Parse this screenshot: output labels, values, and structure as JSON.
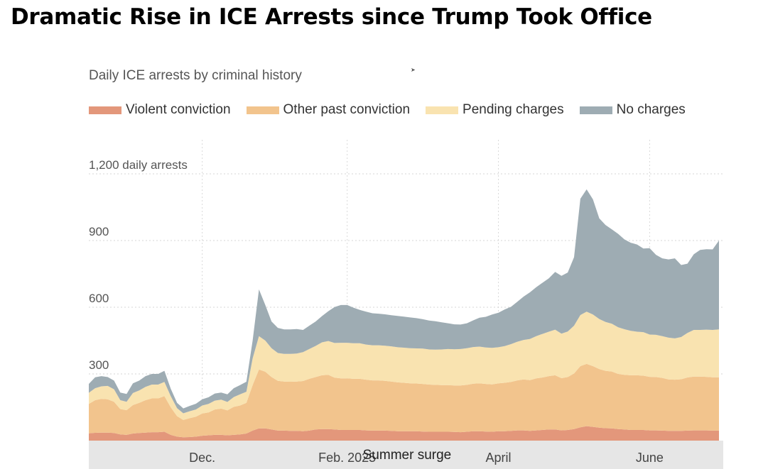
{
  "page": {
    "title": "Dramatic Rise in ICE Arrests since Trump Took Office"
  },
  "chart_data": {
    "type": "area",
    "stacked": true,
    "title": "Dramatic Rise in ICE Arrests since Trump Took Office",
    "subtitle": "Daily ICE arrests by criminal history",
    "ylabel": "",
    "xlabel": "",
    "ylim": [
      0,
      1200
    ],
    "y_ticks": [
      {
        "value": 1200,
        "label": "1,200 daily arrests"
      },
      {
        "value": 900,
        "label": "900"
      },
      {
        "value": 600,
        "label": "600"
      },
      {
        "value": 300,
        "label": "300"
      }
    ],
    "x_domain": [
      0,
      100
    ],
    "x_ticks": [
      {
        "x": 18,
        "label": "Dec."
      },
      {
        "x": 41,
        "label": "Feb. 2025"
      },
      {
        "x": 65,
        "label": "April"
      },
      {
        "x": 89,
        "label": "June"
      }
    ],
    "grid": true,
    "legend_position": "top-left",
    "annotation": {
      "text": "Summer surge",
      "x": 50.5
    },
    "x": [
      0,
      1,
      2,
      3,
      4,
      5,
      6,
      7,
      8,
      9,
      10,
      11,
      12,
      13,
      14,
      15,
      16,
      17,
      18,
      19,
      20,
      21,
      22,
      23,
      24,
      25,
      26,
      27,
      28,
      29,
      30,
      31,
      32,
      33,
      34,
      35,
      36,
      37,
      38,
      39,
      40,
      41,
      42,
      43,
      44,
      45,
      46,
      47,
      48,
      49,
      50,
      51,
      52,
      53,
      54,
      55,
      56,
      57,
      58,
      59,
      60,
      61,
      62,
      63,
      64,
      65,
      66,
      67,
      68,
      69,
      70,
      71,
      72,
      73,
      74,
      75,
      76,
      77,
      78,
      79,
      80,
      81,
      82,
      83,
      84,
      85,
      86,
      87,
      88,
      89,
      90,
      91,
      92,
      93,
      94,
      95,
      96,
      97,
      98,
      99,
      100
    ],
    "series": [
      {
        "name": "Violent conviction",
        "color": "#e3977b",
        "values": [
          33,
          35,
          36,
          36,
          34,
          28,
          26,
          32,
          34,
          36,
          38,
          38,
          40,
          26,
          18,
          15,
          16,
          18,
          22,
          24,
          26,
          26,
          24,
          26,
          28,
          32,
          45,
          55,
          55,
          50,
          45,
          45,
          44,
          44,
          42,
          45,
          50,
          52,
          52,
          50,
          48,
          48,
          48,
          48,
          46,
          45,
          45,
          45,
          44,
          42,
          42,
          42,
          42,
          41,
          40,
          40,
          40,
          40,
          39,
          38,
          40,
          42,
          42,
          41,
          40,
          42,
          42,
          44,
          46,
          46,
          44,
          46,
          48,
          50,
          50,
          46,
          48,
          52,
          60,
          65,
          62,
          58,
          56,
          55,
          52,
          50,
          48,
          48,
          48,
          46,
          46,
          45,
          44,
          44,
          44,
          45,
          46,
          46,
          46,
          45,
          45
        ]
      },
      {
        "name": "Other past conviction",
        "color": "#f2c48d",
        "values": [
          132,
          147,
          152,
          150,
          141,
          114,
          111,
          128,
          136,
          146,
          152,
          152,
          160,
          124,
          92,
          78,
          85,
          90,
          100,
          103,
          114,
          118,
          112,
          126,
          130,
          138,
          205,
          265,
          255,
          236,
          224,
          221,
          221,
          222,
          226,
          233,
          236,
          242,
          244,
          233,
          232,
          232,
          230,
          230,
          228,
          226,
          226,
          224,
          222,
          220,
          218,
          216,
          215,
          214,
          212,
          211,
          210,
          210,
          209,
          210,
          211,
          214,
          216,
          214,
          213,
          216,
          218,
          220,
          225,
          229,
          228,
          234,
          236,
          240,
          244,
          235,
          238,
          250,
          275,
          280,
          273,
          264,
          258,
          256,
          248,
          246,
          246,
          246,
          244,
          241,
          240,
          237,
          231,
          230,
          232,
          239,
          242,
          242,
          241,
          240,
          240
        ]
      },
      {
        "name": "Pending charges",
        "color": "#f9e3b0",
        "values": [
          50,
          54,
          56,
          60,
          56,
          40,
          38,
          54,
          56,
          60,
          62,
          62,
          64,
          50,
          36,
          30,
          31,
          32,
          36,
          38,
          40,
          40,
          38,
          44,
          50,
          50,
          120,
          150,
          140,
          130,
          125,
          124,
          125,
          126,
          130,
          134,
          140,
          148,
          152,
          156,
          160,
          160,
          160,
          160,
          158,
          158,
          158,
          158,
          158,
          158,
          158,
          158,
          158,
          159,
          158,
          158,
          160,
          162,
          163,
          164,
          165,
          165,
          165,
          164,
          164,
          162,
          165,
          170,
          174,
          178,
          185,
          190,
          196,
          200,
          205,
          200,
          205,
          215,
          230,
          235,
          232,
          225,
          220,
          215,
          210,
          205,
          200,
          196,
          196,
          190,
          190,
          188,
          188,
          186,
          190,
          200,
          210,
          210,
          212,
          213,
          215
        ]
      },
      {
        "name": "No charges",
        "color": "#9eacb3",
        "values": [
          40,
          49,
          46,
          40,
          39,
          34,
          35,
          44,
          44,
          48,
          48,
          48,
          50,
          34,
          24,
          22,
          24,
          26,
          28,
          30,
          32,
          32,
          34,
          40,
          42,
          45,
          80,
          210,
          160,
          120,
          113,
          110,
          110,
          110,
          100,
          105,
          110,
          118,
          134,
          162,
          170,
          170,
          160,
          150,
          148,
          144,
          142,
          141,
          140,
          141,
          140,
          138,
          136,
          132,
          130,
          128,
          122,
          116,
          112,
          110,
          112,
          120,
          130,
          138,
          150,
          155,
          165,
          168,
          180,
          195,
          210,
          220,
          230,
          240,
          260,
          260,
          265,
          308,
          523,
          550,
          518,
          453,
          436,
          424,
          420,
          404,
          396,
          392,
          376,
          389,
          360,
          350,
          352,
          360,
          324,
          312,
          340,
          360,
          362,
          362,
          400
        ]
      }
    ]
  }
}
